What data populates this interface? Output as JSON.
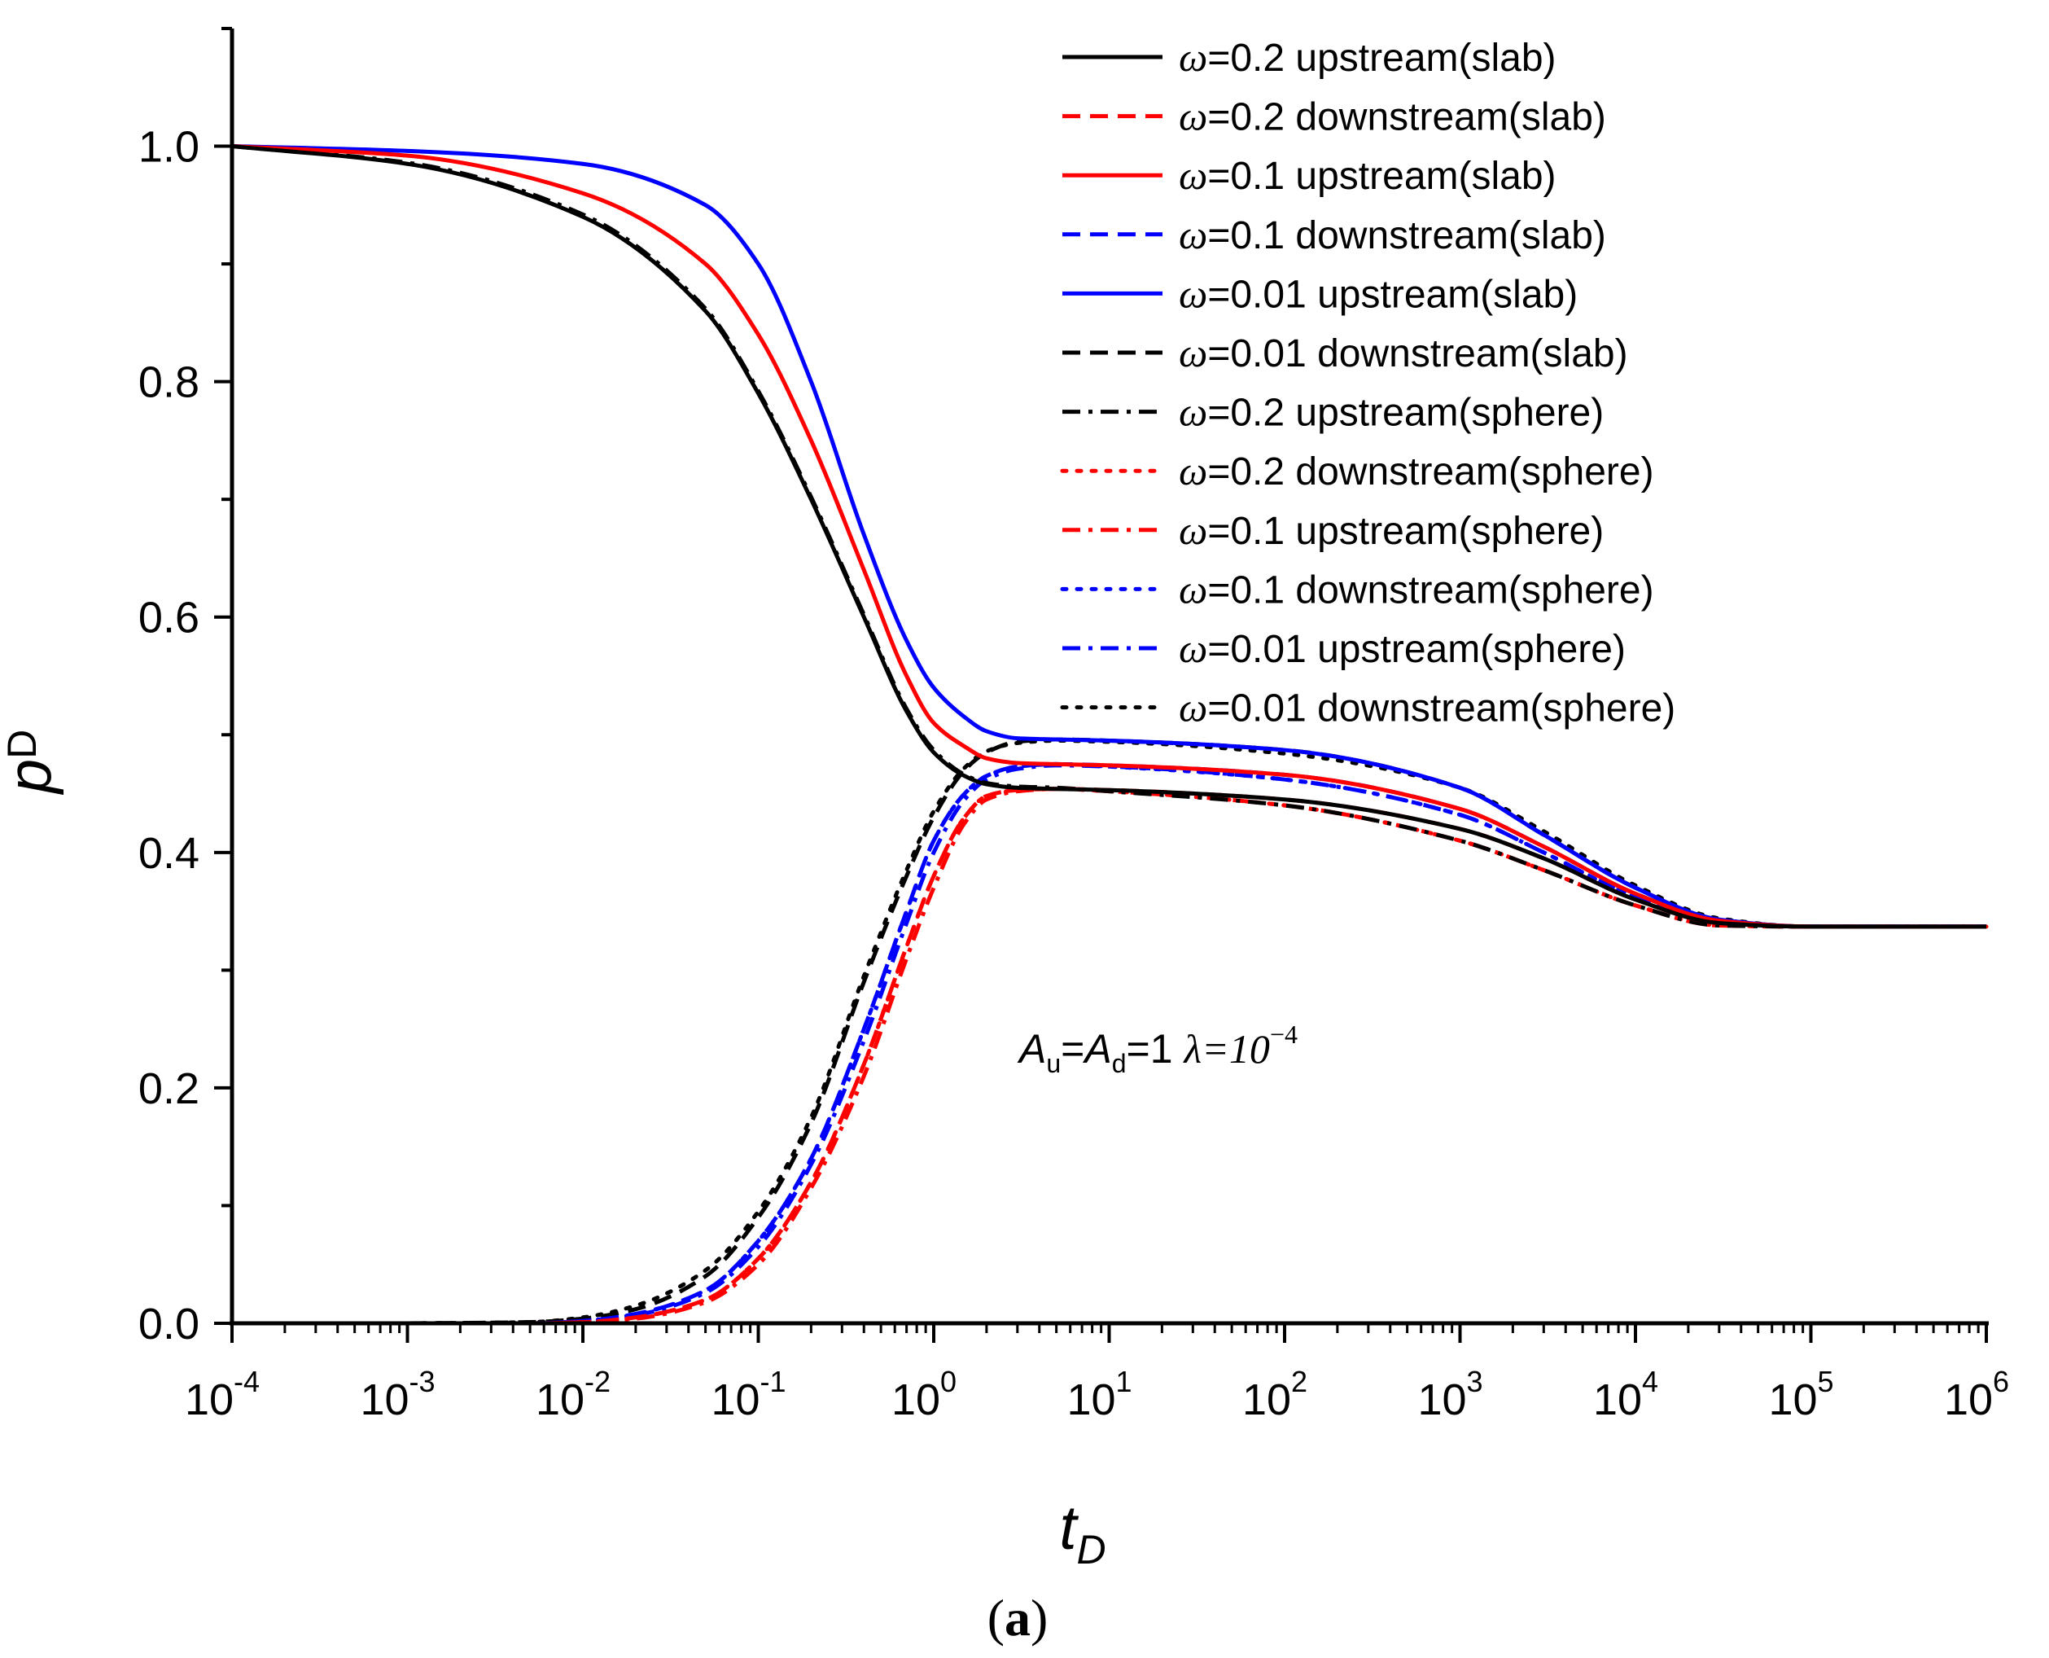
{
  "chart_data": {
    "type": "line",
    "title": "",
    "xlabel": "t",
    "xlabel_sub": "D",
    "ylabel": "p",
    "ylabel_sub": "D",
    "x_scale": "log",
    "xlim": [
      0.0001,
      1000000
    ],
    "ylim": [
      0,
      1.1
    ],
    "x_ticks": [
      {
        "base": "10",
        "exp": "-4"
      },
      {
        "base": "10",
        "exp": "-3"
      },
      {
        "base": "10",
        "exp": "-2"
      },
      {
        "base": "10",
        "exp": "-1"
      },
      {
        "base": "10",
        "exp": "0"
      },
      {
        "base": "10",
        "exp": "1"
      },
      {
        "base": "10",
        "exp": "2"
      },
      {
        "base": "10",
        "exp": "3"
      },
      {
        "base": "10",
        "exp": "4"
      },
      {
        "base": "10",
        "exp": "5"
      },
      {
        "base": "10",
        "exp": "6"
      }
    ],
    "y_ticks": [
      "0.0",
      "0.2",
      "0.4",
      "0.6",
      "0.8",
      "1.0"
    ],
    "legend_position": "top-right",
    "annotation": {
      "a_u": "A",
      "u_sub": "u",
      "eq1": "=",
      "a_d": "A",
      "d_sub": "d",
      "eq2": "=1",
      "lambda_text": "λ=10",
      "lambda_exp": "−4"
    },
    "caption": {
      "open": "(",
      "letter": "a",
      "close": ")"
    },
    "series": [
      {
        "name": "ω=0.2 upstream(slab)",
        "symbol": "ω",
        "label": "=0.2 upstream(slab)",
        "color": "#000000",
        "dash": "solid",
        "x": [
          0.0001,
          0.001,
          0.01,
          0.05,
          0.1,
          0.2,
          0.4,
          0.7,
          1,
          1.5,
          2,
          3,
          5,
          10,
          100,
          1000,
          3000,
          10000,
          30000,
          100000,
          1000000
        ],
        "y": [
          1.0,
          0.985,
          0.94,
          0.86,
          0.79,
          0.7,
          0.6,
          0.52,
          0.485,
          0.465,
          0.458,
          0.455,
          0.454,
          0.453,
          0.445,
          0.42,
          0.395,
          0.36,
          0.34,
          0.337,
          0.337
        ]
      },
      {
        "name": "ω=0.2 downstream(slab)",
        "symbol": "ω",
        "label": "=0.2 downstream(slab)",
        "color": "#ff0000",
        "dash": "dashed",
        "x": [
          0.001,
          0.005,
          0.01,
          0.02,
          0.05,
          0.1,
          0.2,
          0.4,
          0.7,
          1,
          1.5,
          2,
          3,
          5,
          10,
          100,
          1000,
          3000,
          10000,
          30000,
          100000,
          1000000
        ],
        "y": [
          0.0,
          0.0,
          0.001,
          0.005,
          0.02,
          0.055,
          0.12,
          0.22,
          0.32,
          0.38,
          0.43,
          0.448,
          0.453,
          0.454,
          0.453,
          0.445,
          0.42,
          0.395,
          0.36,
          0.34,
          0.337,
          0.337
        ]
      },
      {
        "name": "ω=0.1 upstream(slab)",
        "symbol": "ω",
        "label": "=0.1 upstream(slab)",
        "color": "#ff0000",
        "dash": "solid",
        "x": [
          0.0001,
          0.001,
          0.01,
          0.05,
          0.1,
          0.2,
          0.4,
          0.7,
          1,
          1.5,
          2,
          3,
          5,
          10,
          100,
          1000,
          3000,
          10000,
          30000,
          100000,
          1000000
        ],
        "y": [
          1.0,
          0.992,
          0.96,
          0.9,
          0.84,
          0.75,
          0.64,
          0.55,
          0.51,
          0.49,
          0.48,
          0.476,
          0.475,
          0.474,
          0.466,
          0.437,
          0.405,
          0.365,
          0.342,
          0.337,
          0.337
        ]
      },
      {
        "name": "ω=0.1 downstream(slab)",
        "symbol": "ω",
        "label": "=0.1 downstream(slab)",
        "color": "#0000ff",
        "dash": "dashed",
        "x": [
          0.001,
          0.005,
          0.01,
          0.02,
          0.05,
          0.1,
          0.2,
          0.4,
          0.7,
          1,
          1.5,
          2,
          3,
          5,
          10,
          100,
          1000,
          3000,
          10000,
          30000,
          100000,
          1000000
        ],
        "y": [
          0.0,
          0.0,
          0.002,
          0.008,
          0.028,
          0.07,
          0.14,
          0.25,
          0.35,
          0.41,
          0.45,
          0.465,
          0.473,
          0.475,
          0.474,
          0.466,
          0.437,
          0.405,
          0.365,
          0.342,
          0.337,
          0.337
        ]
      },
      {
        "name": "ω=0.01 upstream(slab)",
        "symbol": "ω",
        "label": "=0.01 upstream(slab)",
        "color": "#0000ff",
        "dash": "solid",
        "x": [
          0.0001,
          0.001,
          0.01,
          0.05,
          0.1,
          0.2,
          0.4,
          0.7,
          1,
          1.5,
          2,
          3,
          5,
          10,
          100,
          1000,
          3000,
          10000,
          30000,
          100000,
          1000000
        ],
        "y": [
          1.0,
          0.996,
          0.985,
          0.95,
          0.9,
          0.8,
          0.67,
          0.58,
          0.54,
          0.515,
          0.503,
          0.497,
          0.496,
          0.495,
          0.487,
          0.455,
          0.415,
          0.37,
          0.343,
          0.337,
          0.337
        ]
      },
      {
        "name": "ω=0.01 downstream(slab)",
        "symbol": "ω",
        "label": "=0.01 downstream(slab)",
        "color": "#000000",
        "dash": "dashed",
        "x": [
          0.001,
          0.005,
          0.01,
          0.02,
          0.05,
          0.1,
          0.2,
          0.4,
          0.7,
          1,
          1.5,
          2,
          3,
          5,
          10,
          100,
          1000,
          3000,
          10000,
          30000,
          100000,
          1000000
        ],
        "y": [
          0.0,
          0.001,
          0.004,
          0.012,
          0.04,
          0.09,
          0.17,
          0.29,
          0.38,
          0.43,
          0.47,
          0.485,
          0.494,
          0.496,
          0.495,
          0.487,
          0.455,
          0.415,
          0.37,
          0.343,
          0.337,
          0.337
        ]
      },
      {
        "name": "ω=0.2 upstream(sphere)",
        "symbol": "ω",
        "label": "=0.2 upstream(sphere)",
        "color": "#000000",
        "dash": "dashdot",
        "x": [
          0.0001,
          0.001,
          0.01,
          0.05,
          0.1,
          0.2,
          0.4,
          0.7,
          1,
          1.5,
          2,
          3,
          5,
          10,
          100,
          1000,
          3000,
          10000,
          30000,
          100000,
          1000000
        ],
        "y": [
          1.0,
          0.986,
          0.942,
          0.862,
          0.792,
          0.702,
          0.602,
          0.522,
          0.487,
          0.466,
          0.459,
          0.456,
          0.455,
          0.452,
          0.44,
          0.41,
          0.385,
          0.355,
          0.338,
          0.337,
          0.337
        ]
      },
      {
        "name": "ω=0.2 downstream(sphere)",
        "symbol": "ω",
        "label": "=0.2 downstream(sphere)",
        "color": "#ff0000",
        "dash": "dotted",
        "x": [
          0.001,
          0.005,
          0.01,
          0.02,
          0.05,
          0.1,
          0.2,
          0.4,
          0.7,
          1,
          1.5,
          2,
          3,
          5,
          10,
          100,
          1000,
          3000,
          10000,
          30000,
          100000,
          1000000
        ],
        "y": [
          0.0,
          0.0,
          0.001,
          0.005,
          0.02,
          0.055,
          0.12,
          0.22,
          0.32,
          0.38,
          0.43,
          0.448,
          0.453,
          0.454,
          0.452,
          0.44,
          0.41,
          0.385,
          0.355,
          0.338,
          0.337,
          0.337
        ]
      },
      {
        "name": "ω=0.1 upstream(sphere)",
        "symbol": "ω",
        "label": "=0.1 upstream(sphere)",
        "color": "#ff0000",
        "dash": "dashdot",
        "x": [
          0.001,
          0.005,
          0.01,
          0.02,
          0.05,
          0.1,
          0.2,
          0.4,
          0.7,
          1,
          1.5,
          2,
          3,
          5,
          10,
          100,
          1000,
          3000,
          10000,
          30000,
          100000,
          1000000
        ],
        "y": [
          0.0,
          0.0,
          0.001,
          0.004,
          0.018,
          0.05,
          0.115,
          0.21,
          0.31,
          0.37,
          0.425,
          0.445,
          0.452,
          0.454,
          0.452,
          0.44,
          0.41,
          0.385,
          0.355,
          0.338,
          0.337,
          0.337
        ]
      },
      {
        "name": "ω=0.1 downstream(sphere)",
        "symbol": "ω",
        "label": "=0.1 downstream(sphere)",
        "color": "#0000ff",
        "dash": "dotted",
        "x": [
          0.001,
          0.005,
          0.01,
          0.02,
          0.05,
          0.1,
          0.2,
          0.4,
          0.7,
          1,
          1.5,
          2,
          3,
          5,
          10,
          100,
          1000,
          3000,
          10000,
          30000,
          100000,
          1000000
        ],
        "y": [
          0.0,
          0.0,
          0.002,
          0.008,
          0.028,
          0.07,
          0.14,
          0.25,
          0.35,
          0.41,
          0.45,
          0.465,
          0.473,
          0.475,
          0.473,
          0.462,
          0.432,
          0.4,
          0.362,
          0.341,
          0.337,
          0.337
        ]
      },
      {
        "name": "ω=0.01 upstream(sphere)",
        "symbol": "ω",
        "label": "=0.01 upstream(sphere)",
        "color": "#0000ff",
        "dash": "dashdot",
        "x": [
          0.001,
          0.005,
          0.01,
          0.02,
          0.05,
          0.1,
          0.2,
          0.4,
          0.7,
          1,
          1.5,
          2,
          3,
          5,
          10,
          100,
          1000,
          3000,
          10000,
          30000,
          100000,
          1000000
        ],
        "y": [
          0.0,
          0.0,
          0.002,
          0.007,
          0.026,
          0.065,
          0.135,
          0.24,
          0.34,
          0.4,
          0.445,
          0.462,
          0.471,
          0.474,
          0.473,
          0.462,
          0.432,
          0.4,
          0.362,
          0.341,
          0.337,
          0.337
        ]
      },
      {
        "name": "ω=0.01 downstream(sphere)",
        "symbol": "ω",
        "label": "=0.01 downstream(sphere)",
        "color": "#000000",
        "dash": "dotted",
        "x": [
          0.001,
          0.005,
          0.01,
          0.02,
          0.05,
          0.1,
          0.2,
          0.4,
          0.7,
          1,
          1.5,
          2,
          3,
          5,
          10,
          100,
          1000,
          3000,
          10000,
          30000,
          100000,
          1000000
        ],
        "y": [
          0.0,
          0.001,
          0.005,
          0.015,
          0.045,
          0.095,
          0.175,
          0.295,
          0.385,
          0.435,
          0.472,
          0.486,
          0.493,
          0.495,
          0.494,
          0.484,
          0.455,
          0.418,
          0.372,
          0.344,
          0.337,
          0.337
        ]
      }
    ]
  }
}
